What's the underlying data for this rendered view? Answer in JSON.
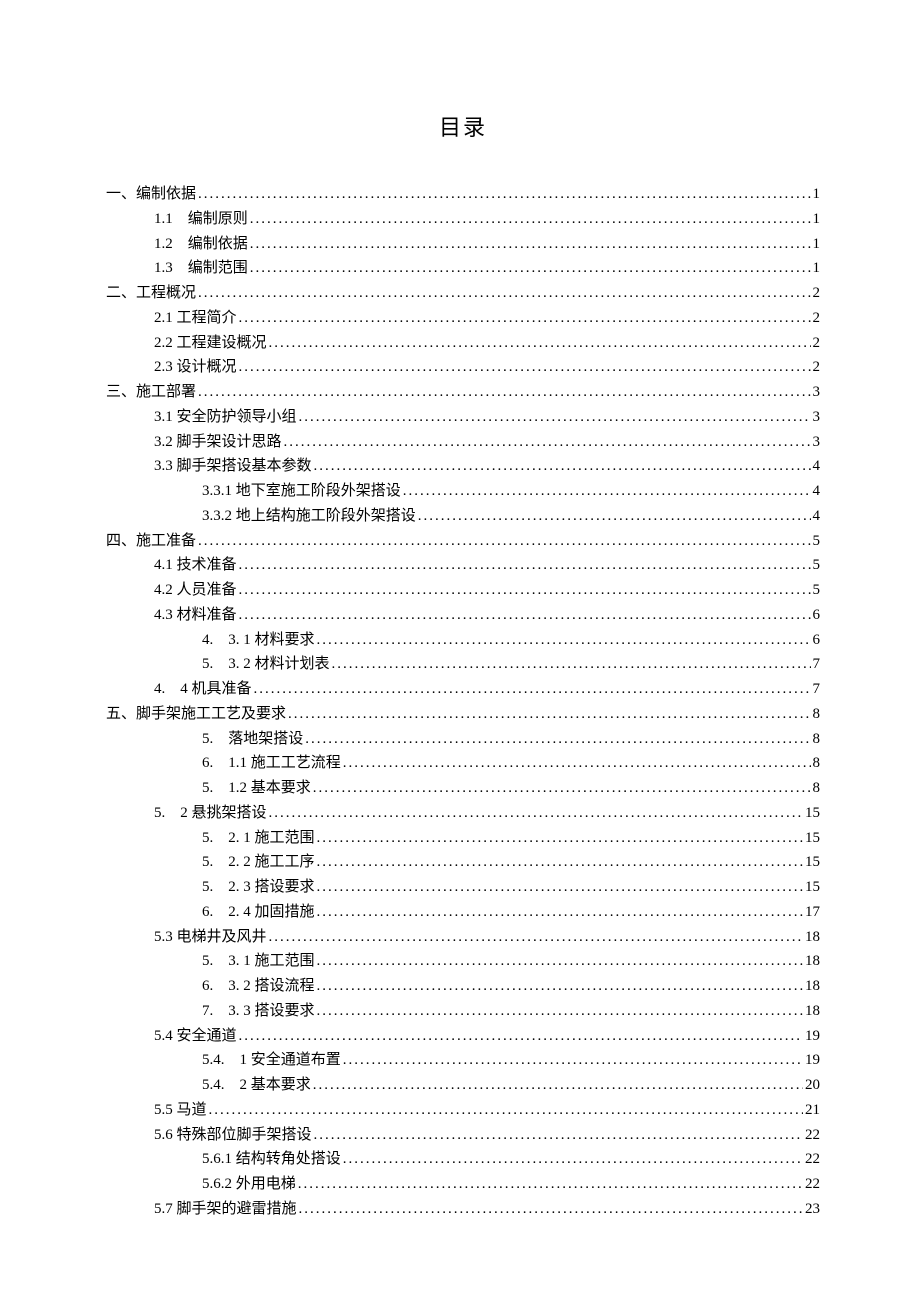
{
  "title": "目录",
  "entries": [
    {
      "indent": 0,
      "label": "一、编制依据",
      "page": "1"
    },
    {
      "indent": 1,
      "label": "1.1 编制原则",
      "page": "1"
    },
    {
      "indent": 1,
      "label": "1.2 编制依据",
      "page": "1"
    },
    {
      "indent": 1,
      "label": "1.3 编制范围",
      "page": "1"
    },
    {
      "indent": 0,
      "label": "二、工程概况",
      "page": "2"
    },
    {
      "indent": 1,
      "label": "2.1 工程简介",
      "page": "2"
    },
    {
      "indent": 1,
      "label": "2.2 工程建设概况",
      "page": "2"
    },
    {
      "indent": 1,
      "label": "2.3 设计概况",
      "page": "2"
    },
    {
      "indent": 0,
      "label": "三、施工部署",
      "page": "3"
    },
    {
      "indent": 1,
      "label": "3.1 安全防护领导小组",
      "page": "3"
    },
    {
      "indent": 1,
      "label": "3.2 脚手架设计思路",
      "page": "3"
    },
    {
      "indent": 1,
      "label": "3.3 脚手架搭设基本参数",
      "page": "4"
    },
    {
      "indent": 2,
      "label": "3.3.1 地下室施工阶段外架搭设",
      "page": "4"
    },
    {
      "indent": 2,
      "label": "3.3.2 地上结构施工阶段外架搭设",
      "page": "4"
    },
    {
      "indent": 0,
      "label": "四、施工准备",
      "page": "5"
    },
    {
      "indent": 1,
      "label": "4.1 技术准备",
      "page": "5"
    },
    {
      "indent": 1,
      "label": "4.2 人员准备",
      "page": "5"
    },
    {
      "indent": 1,
      "label": "4.3 材料准备",
      "page": "6"
    },
    {
      "indent": 2,
      "label": "4. 3. 1 材料要求",
      "page": "6"
    },
    {
      "indent": 2,
      "label": "5. 3. 2 材料计划表",
      "page": "7"
    },
    {
      "indent": 1,
      "label": "4. 4 机具准备",
      "page": "7"
    },
    {
      "indent": 0,
      "label": "五、脚手架施工工艺及要求",
      "page": "8"
    },
    {
      "indent": 2,
      "label": "5. 落地架搭设",
      "page": "8"
    },
    {
      "indent": 2,
      "label": "6. 1.1 施工工艺流程",
      "page": "8"
    },
    {
      "indent": 2,
      "label": "5. 1.2 基本要求",
      "page": "8"
    },
    {
      "indent": 1,
      "label": "5. 2 悬挑架搭设",
      "page": "15"
    },
    {
      "indent": 2,
      "label": "5. 2. 1 施工范围",
      "page": "15"
    },
    {
      "indent": 2,
      "label": "5. 2. 2 施工工序",
      "page": "15"
    },
    {
      "indent": 2,
      "label": "5. 2. 3 搭设要求",
      "page": "15"
    },
    {
      "indent": 2,
      "label": "6. 2. 4 加固措施",
      "page": "17"
    },
    {
      "indent": 1,
      "label": "5.3 电梯井及风井",
      "page": "18"
    },
    {
      "indent": 2,
      "label": "5. 3. 1 施工范围",
      "page": "18"
    },
    {
      "indent": 2,
      "label": "6. 3. 2 搭设流程",
      "page": "18"
    },
    {
      "indent": 2,
      "label": "7. 3. 3 搭设要求",
      "page": "18"
    },
    {
      "indent": 1,
      "label": "5.4 安全通道",
      "page": "19"
    },
    {
      "indent": 2,
      "label": "5.4. 1 安全通道布置",
      "page": "19"
    },
    {
      "indent": 2,
      "label": "5.4. 2 基本要求",
      "page": "20"
    },
    {
      "indent": 1,
      "label": "5.5 马道",
      "page": "21"
    },
    {
      "indent": 1,
      "label": "5.6 特殊部位脚手架搭设",
      "page": "22"
    },
    {
      "indent": 2,
      "label": "5.6.1 结构转角处搭设",
      "page": "22"
    },
    {
      "indent": 2,
      "label": "5.6.2 外用电梯",
      "page": "22"
    },
    {
      "indent": 1,
      "label": "5.7 脚手架的避雷措施",
      "page": "23"
    }
  ]
}
